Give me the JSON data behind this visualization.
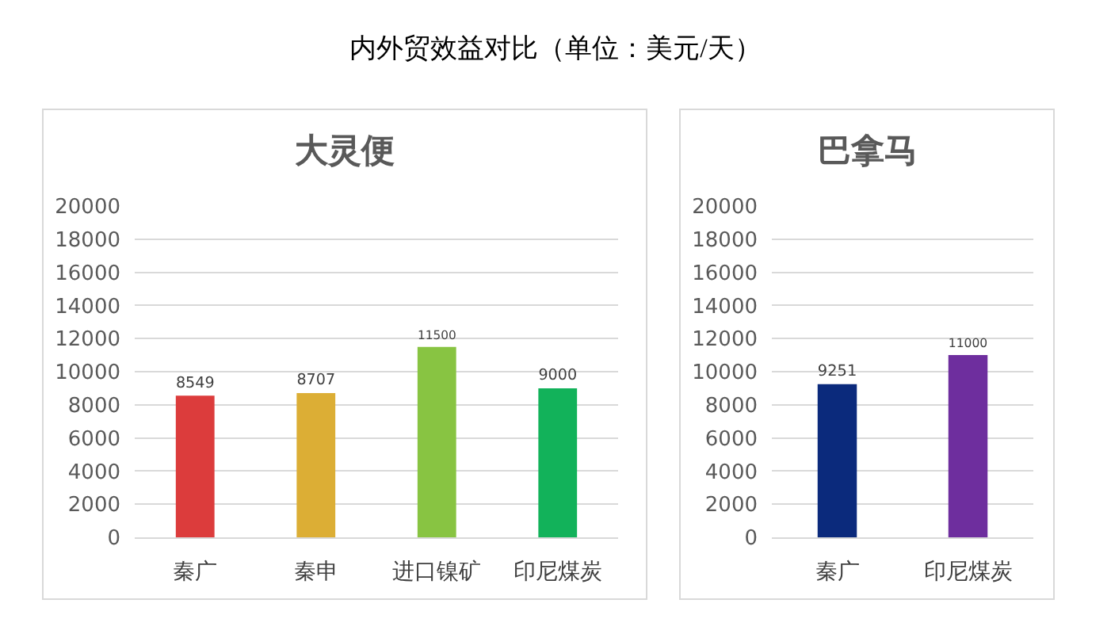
{
  "chart_data": [
    {
      "type": "other",
      "title": "内外贸效益对比（单位：美元/天）"
    },
    {
      "type": "bar",
      "title": "大灵便",
      "categories": [
        "秦广",
        "秦申",
        "进口镍矿",
        "印尼煤炭"
      ],
      "values": [
        8549,
        8707,
        11500,
        9000
      ],
      "colors": [
        "#dc3c3c",
        "#dcae35",
        "#88c442",
        "#12b25a"
      ],
      "ylim": [
        0,
        20000
      ],
      "yticks": [
        0,
        2000,
        4000,
        6000,
        8000,
        10000,
        12000,
        14000,
        16000,
        18000,
        20000
      ],
      "grid": "y",
      "data_labels": true
    },
    {
      "type": "bar",
      "title": "巴拿马",
      "categories": [
        "秦广",
        "印尼煤炭"
      ],
      "values": [
        9251,
        11000
      ],
      "colors": [
        "#0b2a7c",
        "#6e2e9e"
      ],
      "ylim": [
        0,
        20000
      ],
      "yticks": [
        0,
        2000,
        4000,
        6000,
        8000,
        10000,
        12000,
        14000,
        16000,
        18000,
        20000
      ],
      "grid": "y",
      "data_labels": true
    }
  ]
}
